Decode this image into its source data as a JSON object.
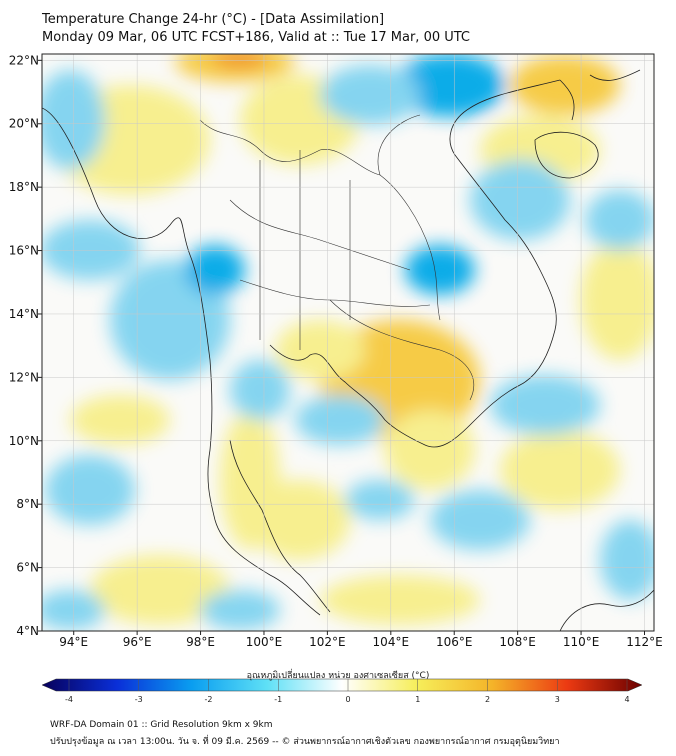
{
  "header": {
    "title": "Temperature Change 24-hr (°C) - [Data Assimilation]",
    "subtitle": "Monday 09 Mar, 06 UTC FCST+186, Valid at :: Tue 17 Mar, 00 UTC"
  },
  "map": {
    "lon_labels": [
      "94°E",
      "96°E",
      "98°E",
      "100°E",
      "102°E",
      "104°E",
      "106°E",
      "108°E",
      "110°E",
      "112°E"
    ],
    "lat_labels": [
      "22°N",
      "20°N",
      "18°N",
      "16°N",
      "14°N",
      "12°N",
      "10°N",
      "8°N",
      "6°N",
      "4°N"
    ],
    "lon_range": [
      93,
      112.3
    ],
    "lat_range": [
      4,
      22.2
    ],
    "colors": {
      "cold_strong": "#00a8e8",
      "cold": "#7fd3f0",
      "neutral": "#fafaf8",
      "warm": "#f7ef8a",
      "warm_strong": "#f6c93c",
      "hot": "#f08a20"
    }
  },
  "colorbar": {
    "title": "อุณหภูมิเปลี่ยนแปลง หน่วย องศาเซลเซียส (°C)",
    "ticks": [
      "-4",
      "-3",
      "-2",
      "-1",
      "0",
      "1",
      "2",
      "3",
      "4"
    ],
    "range": [
      -4,
      4
    ],
    "stops": [
      "#07005a",
      "#0a2fd8",
      "#0a9ef0",
      "#5fe0f6",
      "#ffffff",
      "#f6ee5a",
      "#f4b429",
      "#ec3a12",
      "#6a0000"
    ]
  },
  "footer": {
    "line1": "WRF-DA Domain 01 :: Grid Resolution 9km x 9km",
    "line2": "ปรับปรุงข้อมูล ณ เวลา 13:00น. วัน จ. ที่ 09 มี.ค. 2569 -- © ส่วนพยากรณ์อากาศเชิงตัวเลข กองพยากรณ์อากาศ กรมอุตุนิยมวิทยา"
  }
}
